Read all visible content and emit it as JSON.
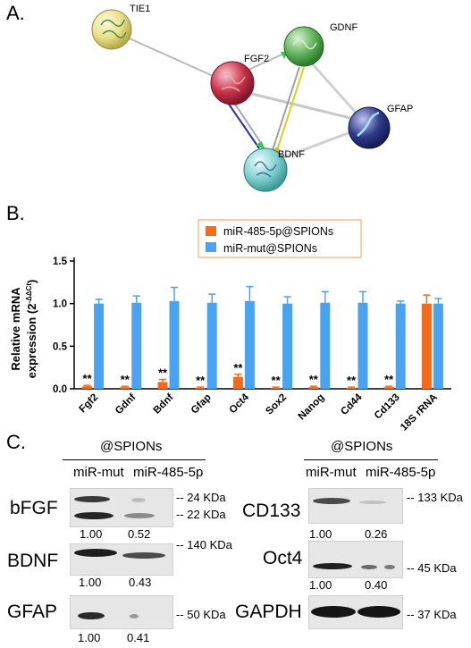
{
  "panel_a": {
    "letter": "A.",
    "nodes": {
      "tie1": "TIE1",
      "gdnf": "GDNF",
      "fgf2": "FGF2",
      "gfap": "GFAP",
      "bdnf": "BDNF"
    },
    "colors": {
      "tie1": "#e8df8a",
      "gdnf": "#5fb05a",
      "fgf2": "#c9324a",
      "gfap": "#2f3a8a",
      "bdnf": "#7fd0cf"
    }
  },
  "panel_b": {
    "letter": "B.",
    "chart_data": {
      "type": "bar",
      "ylabel_line1": "Relative mRNA",
      "ylabel_line2": "expression (2",
      "ylabel_sup": "-ΔΔCt",
      "ylabel_close": ")",
      "ylim": [
        0,
        1.5
      ],
      "yticks": [
        "0.0",
        "0.5",
        "1.0",
        "1.5"
      ],
      "ytick_values": [
        0.0,
        0.5,
        1.0,
        1.5
      ],
      "categories": [
        "Fgf2",
        "Gdnf",
        "Bdnf",
        "Gfap",
        "Oct4",
        "Sox2",
        "Nanog",
        "Cd44",
        "Cd133",
        "18S rRNA"
      ],
      "series": [
        {
          "name": "miR-485-5p@SPIONs",
          "color": "#f26b1d",
          "values": [
            0.03,
            0.02,
            0.08,
            0.01,
            0.14,
            0.01,
            0.02,
            0.01,
            0.02,
            1.0
          ],
          "errors": [
            0.01,
            0.01,
            0.03,
            0.01,
            0.03,
            0.01,
            0.01,
            0.01,
            0.01,
            0.1
          ]
        },
        {
          "name": "miR-mut@SPIONs",
          "color": "#4aa3f0",
          "values": [
            1.0,
            1.01,
            1.03,
            1.01,
            1.03,
            1.0,
            1.01,
            1.01,
            1.0,
            1.0
          ],
          "errors": [
            0.05,
            0.08,
            0.16,
            0.1,
            0.17,
            0.08,
            0.13,
            0.13,
            0.03,
            0.06
          ]
        }
      ],
      "annotations": [
        "**",
        "**",
        "**",
        "**",
        "**",
        "**",
        "**",
        "**",
        "**"
      ]
    }
  },
  "panel_c": {
    "letter": "C.",
    "left": {
      "group_label": "@SPIONs",
      "col1": "miR-mut",
      "col2": "miR-485-5p",
      "rows": [
        {
          "protein": "bFGF",
          "q1": "1.00",
          "q2": "0.52",
          "kda_a": "-- 24 KDa",
          "kda_b": "-- 22 KDa"
        },
        {
          "protein": "BDNF",
          "q1": "1.00",
          "q2": "0.43",
          "kda_a": "-- 140 KDa"
        },
        {
          "protein": "GFAP",
          "q1": "1.00",
          "q2": "0.41",
          "kda_a": "-- 50 KDa"
        }
      ]
    },
    "right": {
      "group_label": "@SPIONs",
      "col1": "miR-mut",
      "col2": "miR-485-5p",
      "rows": [
        {
          "protein": "CD133",
          "q1": "1.00",
          "q2": "0.26",
          "kda_a": "-- 133 KDa"
        },
        {
          "protein": "Oct4",
          "q1": "1.00",
          "q2": "0.40",
          "kda_a": "-- 45 KDa"
        },
        {
          "protein": "GAPDH",
          "kda_a": "-- 37 KDa"
        }
      ]
    }
  }
}
